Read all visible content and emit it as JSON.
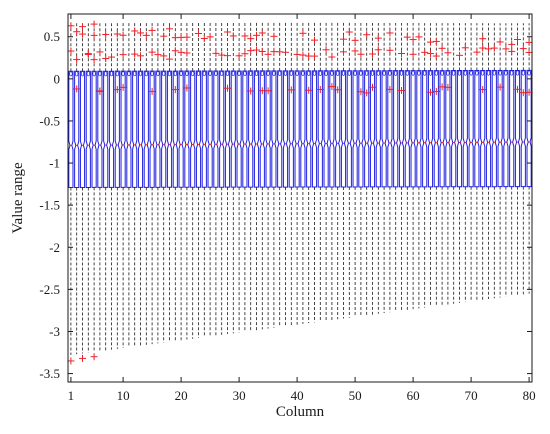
{
  "chart_data": {
    "type": "boxplot",
    "title": "",
    "xlabel": "Column",
    "ylabel": "Value range",
    "xlim": [
      0.5,
      80.5
    ],
    "ylim": [
      -3.6,
      0.77
    ],
    "x_ticks": [
      1,
      10,
      20,
      30,
      40,
      50,
      60,
      70,
      80
    ],
    "x_tick_labels": [
      "1",
      "10",
      "20",
      "30",
      "40",
      "50",
      "60",
      "70",
      "80"
    ],
    "y_ticks": [
      -3.5,
      -3,
      -2.5,
      -2,
      -1.5,
      -1,
      -0.5,
      0,
      0.5
    ],
    "y_tick_labels": [
      "-3.5",
      "-3",
      "-2.5",
      "-2",
      "-1.5",
      "-1",
      "-0.5",
      "0",
      "0.5"
    ],
    "grid": false,
    "columns": {
      "count": 80,
      "positions": "1..80",
      "q1": {
        "start": -1.29,
        "end": -1.28
      },
      "q3": {
        "start": 0.09,
        "end": 0.1
      },
      "median": {
        "start": -0.79,
        "end": -0.75
      },
      "whisker_low": {
        "start": -3.28,
        "end": -2.55
      },
      "whisker_high": {
        "start": 0.67,
        "end": 0.66
      }
    },
    "outliers_example": [
      {
        "x": 1,
        "y": -3.35
      },
      {
        "x": 3,
        "y": -3.32
      },
      {
        "x": 5,
        "y": -3.3
      },
      {
        "x": 1,
        "y": 0.63
      },
      {
        "x": 3,
        "y": 0.62
      },
      {
        "x": 5,
        "y": 0.65
      },
      {
        "x": 1,
        "y": 0.33
      },
      {
        "x": 4,
        "y": 0.3
      },
      {
        "x": 2,
        "y": -0.12
      },
      {
        "x": 6,
        "y": -0.15
      }
    ],
    "colors": {
      "box": "#1f1fe0",
      "median": "#e8242b",
      "whisker": "#1a1a1a",
      "outlier": "#e8242b",
      "axes": "#1a1a1a"
    }
  }
}
